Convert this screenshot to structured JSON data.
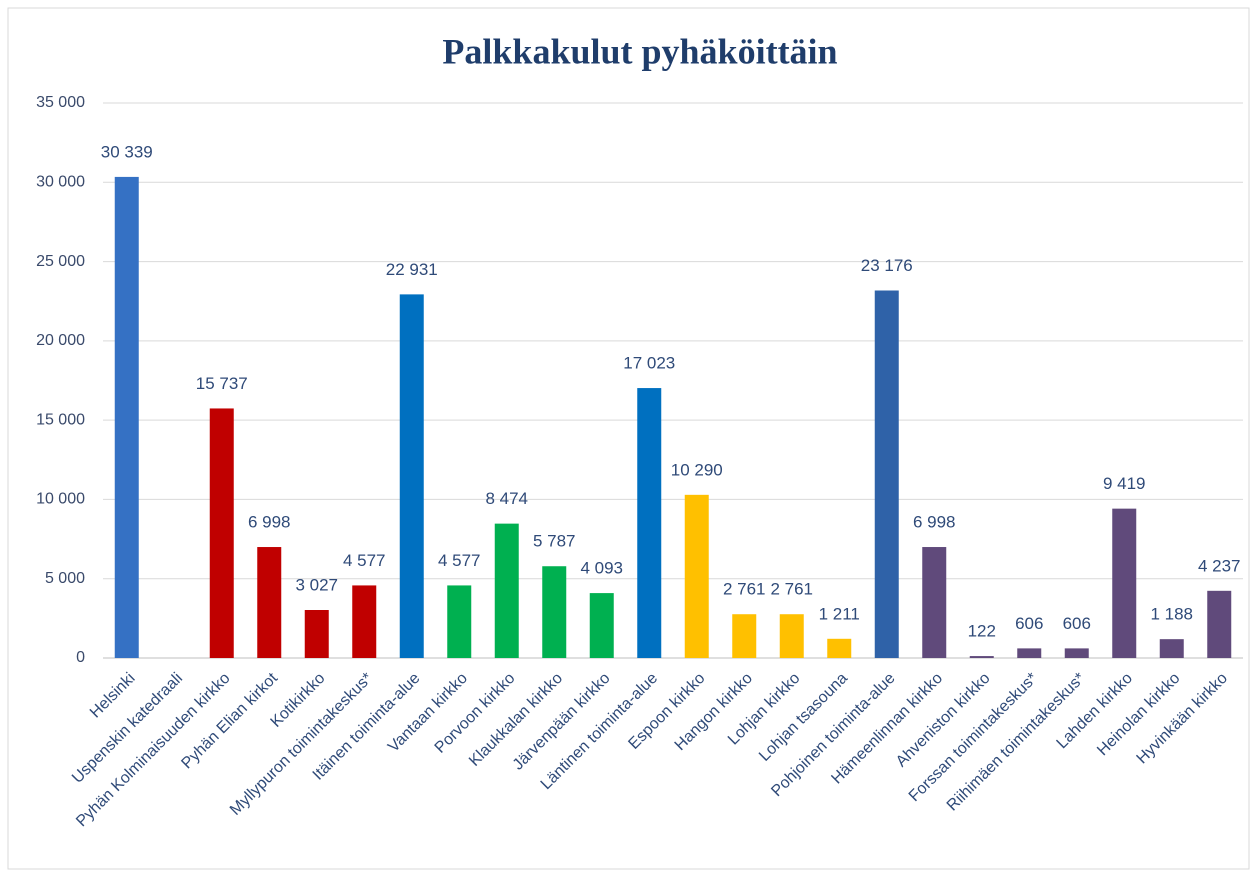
{
  "chart_data": {
    "type": "bar",
    "title": "Palkkakulut pyhäköittäin",
    "categories": [
      "Helsinki",
      "Uspenskin katedraali",
      "Pyhän Kolminaisuuden kirkko",
      "Pyhän Elian kirkot",
      "Kotikirkko",
      "Myllypuron toimintakeskus*",
      "Itäinen toiminta-alue",
      "Vantaan kirkko",
      "Porvoon kirkko",
      "Klaukkalan kirkko",
      "Järvenpään kirkko",
      "Läntinen toiminta-alue",
      "Espoon kirkko",
      "Hangon kirkko",
      "Lohjan kirkko",
      "Lohjan tsasouna",
      "Pohjoinen toiminta-alue",
      "Hämeenlinnan kirkko",
      "Ahveniston kirkko",
      "Forssan toimintakeskus*",
      "Riihimäen toimintakeskus*",
      "Lahden kirkko",
      "Heinolan kirkko",
      "Hyvinkään kirkko"
    ],
    "values": [
      30339,
      null,
      15737,
      6998,
      3027,
      4577,
      22931,
      4577,
      8474,
      5787,
      4093,
      17023,
      10290,
      2761,
      2761,
      1211,
      23176,
      6998,
      122,
      606,
      606,
      9419,
      1188,
      4237
    ],
    "value_labels": [
      "30 339",
      null,
      "15 737",
      "6 998",
      "3 027",
      "4 577",
      "22 931",
      "4 577",
      "8 474",
      "5 787",
      "4 093",
      "17 023",
      "10 290",
      "2 761",
      "2 761",
      "1 211",
      "23 176",
      "6 998",
      "122",
      "606",
      "606",
      "9 419",
      "1 188",
      "4 237"
    ],
    "colors": [
      "#3571c4",
      "#3571c4",
      "#c00000",
      "#c00000",
      "#c00000",
      "#c00000",
      "#0070c0",
      "#00b050",
      "#00b050",
      "#00b050",
      "#00b050",
      "#0070c0",
      "#ffc000",
      "#ffc000",
      "#ffc000",
      "#ffc000",
      "#2f62a8",
      "#604a7b",
      "#604a7b",
      "#604a7b",
      "#604a7b",
      "#604a7b",
      "#604a7b",
      "#604a7b"
    ],
    "ylim": [
      0,
      35000
    ],
    "yticks": [
      0,
      {
        "value": 5000,
        "label": "5 000"
      },
      {
        "value": 10000,
        "label": "10 000"
      },
      {
        "value": 15000,
        "label": "15 000"
      },
      {
        "value": 20000,
        "label": "20 000"
      },
      {
        "value": 25000,
        "label": "25 000"
      },
      {
        "value": 30000,
        "label": "30 000"
      },
      {
        "value": 35000,
        "label": "35 000"
      }
    ],
    "grid": true
  }
}
